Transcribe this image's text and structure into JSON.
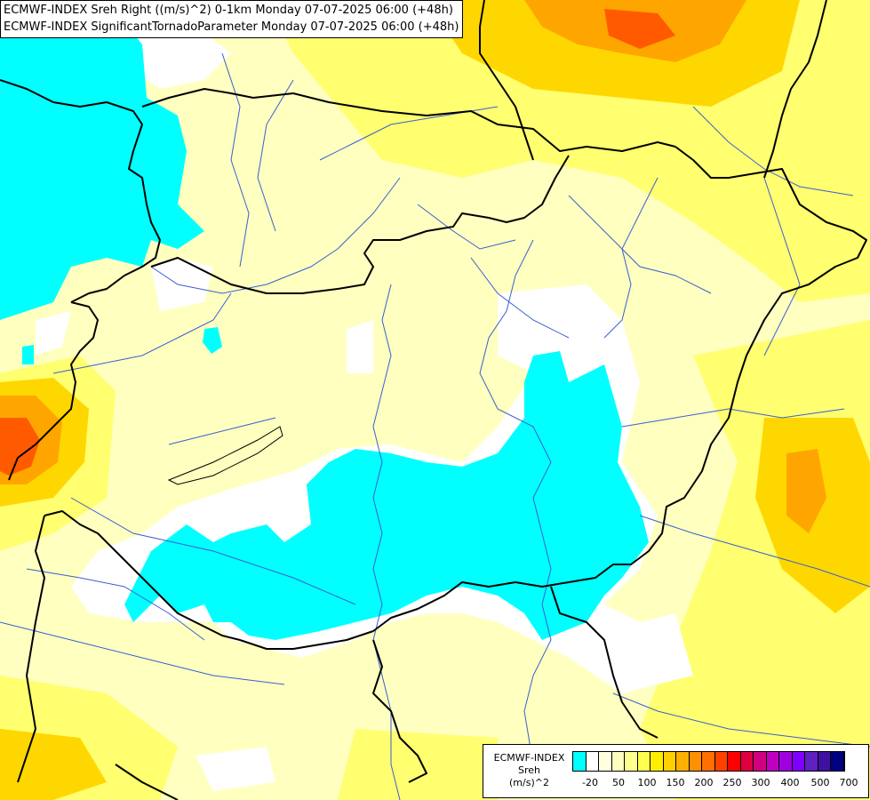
{
  "title": {
    "line1": "ECMWF-INDEX Sreh Right ((m/s)^2) 0-1km Monday 07-07-2025 06:00 (+48h)",
    "line2": "ECMWF-INDEX SignificantTornadoParameter Monday 07-07-2025 06:00 (+48h)"
  },
  "legend": {
    "line1": "ECMWF-INDEX",
    "line2": "Sreh",
    "line3": "(m/s)^2",
    "colors": [
      "#00ffff",
      "#ffffff",
      "#ffffe0",
      "#ffffc0",
      "#ffff90",
      "#ffff50",
      "#ffee00",
      "#ffd000",
      "#ffb000",
      "#ff9000",
      "#ff7000",
      "#ff4000",
      "#ff0000",
      "#e00040",
      "#d00080",
      "#c000c0",
      "#a000e0",
      "#8000ff",
      "#6020c0",
      "#4010a0",
      "#000080"
    ],
    "ticks": [
      "-20",
      "50",
      "100",
      "150",
      "200",
      "250",
      "300",
      "400",
      "500",
      "700"
    ]
  },
  "colors": {
    "cyan": "#00ffff",
    "white": "#ffffff",
    "pale_yellow": "#ffffc0",
    "yellow": "#ffff60",
    "gold": "#ffd700",
    "orange": "#ffa500",
    "red_orange": "#ff5a00",
    "border": "#000000",
    "river": "#3a5fd0"
  }
}
